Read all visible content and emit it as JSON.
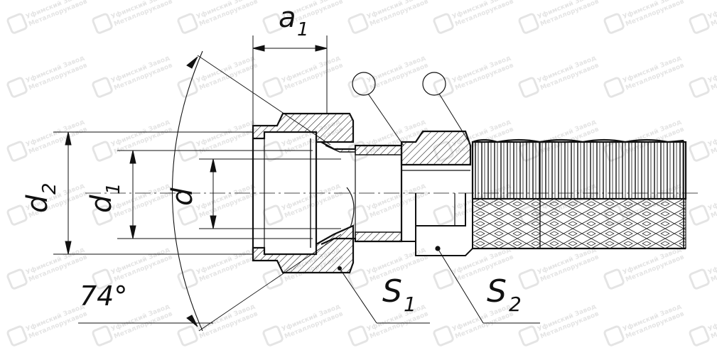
{
  "labels": {
    "a1": "a",
    "a1_sub": "1",
    "d2": "d",
    "d2_sub": "2",
    "d1": "d",
    "d1_sub": "1",
    "d": "d",
    "angle": "74°",
    "s1": "S",
    "s1_sub": "1",
    "s2": "S",
    "s2_sub": "2"
  },
  "watermark": {
    "line1": "Уфимский Завод",
    "line2": "Металлорукавов"
  },
  "colors": {
    "line": "#111111",
    "watermark": "#cfcfcf",
    "background": "#ffffff"
  }
}
